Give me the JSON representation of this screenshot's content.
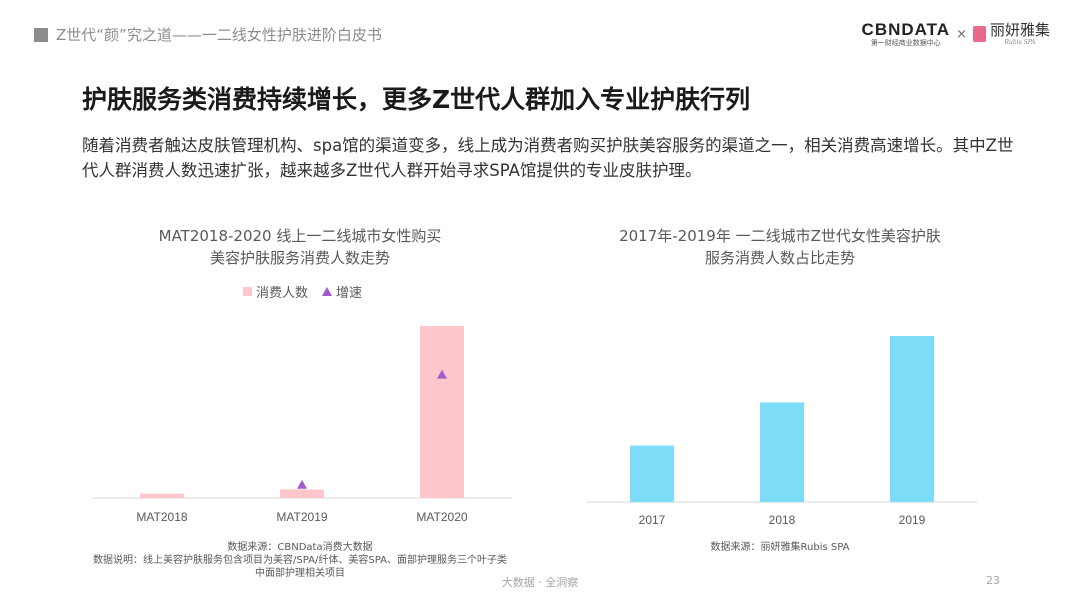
{
  "header": {
    "text": "Z世代“颜”究之道——一二线女性护肤进阶白皮书"
  },
  "logos": {
    "cbn": "CBNDATA",
    "cbn_sub": "第一财经商业数据中心",
    "x": "×",
    "rubis": "丽妍雅集",
    "rubis_sub": "Rubis SPA"
  },
  "title": "护肤服务类消费持续增长，更多Z世代人群加入专业护肤行列",
  "description": "随着消费者触达皮肤管理机构、spa馆的渠道变多，线上成为消费者购买护肤美容服务的渠道之一，相关消费高速增长。其中Z世代人群消费人数迅速扩张，越来越多Z世代人群开始寻求SPA馆提供的专业皮肤护理。",
  "chart_data": [
    {
      "type": "bar",
      "title_line1": "MAT2018-2020 线上一二线城市女性购买",
      "title_line2": "美容护肤服务消费人数走势",
      "categories": [
        "MAT2018",
        "MAT2019",
        "MAT2020"
      ],
      "series": [
        {
          "name": "消费人数",
          "values": [
            2.5,
            5,
            100
          ],
          "color": "#ffc7cc",
          "kind": "bar"
        },
        {
          "name": "增速",
          "values": [
            null,
            8,
            72
          ],
          "color": "#a05bd0",
          "kind": "marker"
        }
      ],
      "ylim": [
        0,
        100
      ],
      "grid": false,
      "legend": "top"
    },
    {
      "type": "bar",
      "title_line1": "2017年-2019年 一二线城市Z世代女性美容护肤",
      "title_line2": "服务消费人数占比走势",
      "categories": [
        "2017",
        "2018",
        "2019"
      ],
      "series": [
        {
          "values": [
            34,
            60,
            100
          ],
          "color": "#7ddcf7",
          "kind": "bar"
        }
      ],
      "ylim": [
        0,
        100
      ],
      "grid": false
    }
  ],
  "sources": {
    "chart1_line1": "数据来源：CBNData消费大数据",
    "chart1_line2": "数据说明：线上美容护肤服务包含项目为美容/SPA/纤体、美容SPA、面部护理服务三个叶子类",
    "chart1_line3": "中面部护理相关项目",
    "chart2_line1": "数据来源：丽妍雅集Rubis SPA"
  },
  "footer": {
    "center": "大数据 · 全洞察",
    "page": "23"
  }
}
